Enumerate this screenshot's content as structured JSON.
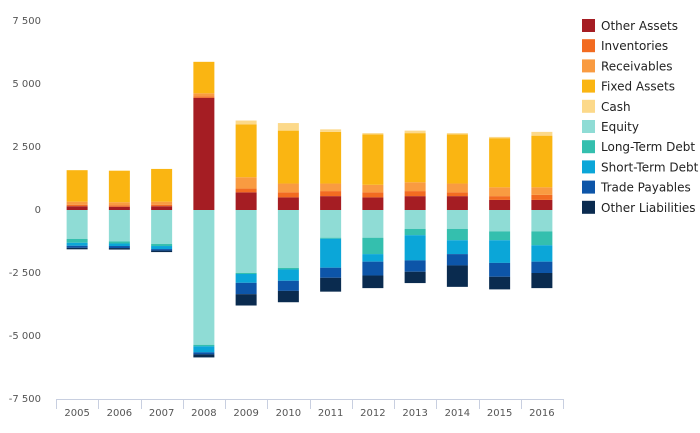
{
  "chart_data": {
    "type": "bar",
    "stacked": true,
    "categories": [
      "2005",
      "2006",
      "2007",
      "2008",
      "2009",
      "2010",
      "2011",
      "2012",
      "2013",
      "2014",
      "2015",
      "2016"
    ],
    "ylim": [
      -7500,
      7500
    ],
    "yticks": [
      -7500,
      -5000,
      -2500,
      0,
      2500,
      5000,
      7500
    ],
    "ytick_labels": [
      "-7 500",
      "-5 000",
      "-2 500",
      "0",
      "2 500",
      "5 000",
      "7 500"
    ],
    "grid": false,
    "legend_position": "right",
    "series": [
      {
        "name": "Other Assets",
        "color": "#a51d23",
        "values": [
          150,
          130,
          150,
          4450,
          700,
          500,
          550,
          500,
          550,
          550,
          400,
          400
        ]
      },
      {
        "name": "Inventories",
        "color": "#f26b21",
        "values": [
          60,
          60,
          60,
          60,
          150,
          200,
          200,
          200,
          200,
          150,
          150,
          200
        ]
      },
      {
        "name": "Receivables",
        "color": "#f99b41",
        "values": [
          120,
          120,
          120,
          120,
          450,
          350,
          300,
          300,
          350,
          350,
          350,
          300
        ]
      },
      {
        "name": "Fixed Assets",
        "color": "#fab512",
        "values": [
          1250,
          1250,
          1300,
          1250,
          2100,
          2100,
          2050,
          2000,
          1950,
          1950,
          1950,
          2050
        ]
      },
      {
        "name": "Cash",
        "color": "#fcd98a",
        "values": [
          0,
          0,
          0,
          0,
          150,
          300,
          100,
          50,
          100,
          50,
          50,
          150
        ]
      },
      {
        "name": "Equity",
        "color": "#8fdcd5",
        "values": [
          -1150,
          -1250,
          -1350,
          -5350,
          -2500,
          -2300,
          -1100,
          -1100,
          -750,
          -750,
          -850,
          -850
        ]
      },
      {
        "name": "Long-Term Debt",
        "color": "#34bfae",
        "values": [
          -150,
          -80,
          -80,
          -60,
          -40,
          -60,
          -40,
          -650,
          -250,
          -450,
          -350,
          -550
        ]
      },
      {
        "name": "Short-Term Debt",
        "color": "#0ba6d8",
        "values": [
          -120,
          -100,
          -120,
          -240,
          -350,
          -450,
          -1150,
          -300,
          -1000,
          -550,
          -900,
          -650
        ]
      },
      {
        "name": "Trade Payables",
        "color": "#0d55a8",
        "values": [
          -80,
          -80,
          -60,
          -80,
          -450,
          -400,
          -400,
          -550,
          -450,
          -450,
          -550,
          -450
        ]
      },
      {
        "name": "Other Liabilities",
        "color": "#0a2b4f",
        "values": [
          -60,
          -60,
          -60,
          -120,
          -450,
          -450,
          -550,
          -500,
          -450,
          -850,
          -500,
          -600
        ]
      }
    ]
  }
}
